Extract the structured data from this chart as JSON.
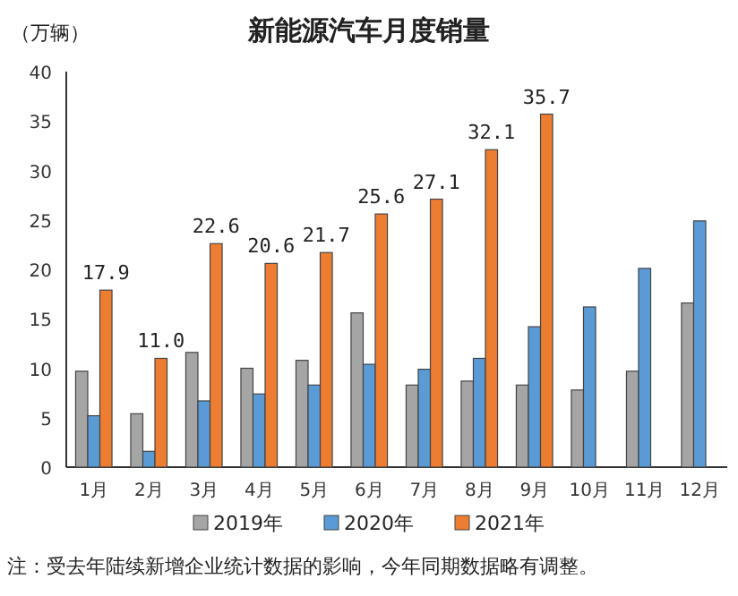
{
  "chart_data": {
    "type": "bar",
    "title": "新能源汽车月度销量",
    "ylabel": "（万辆）",
    "categories": [
      "1月",
      "2月",
      "3月",
      "4月",
      "5月",
      "6月",
      "7月",
      "8月",
      "9月",
      "10月",
      "11月",
      "12月"
    ],
    "series": [
      {
        "name": "2019年",
        "color": "#a5a5a5",
        "values": [
          9.7,
          5.4,
          11.6,
          10.0,
          10.8,
          15.6,
          8.3,
          8.7,
          8.3,
          7.8,
          9.7,
          16.6
        ]
      },
      {
        "name": "2020年",
        "color": "#5b9bd5",
        "values": [
          5.2,
          1.6,
          6.7,
          7.4,
          8.3,
          10.4,
          9.9,
          11.0,
          14.2,
          16.2,
          20.1,
          24.9
        ]
      },
      {
        "name": "2021年",
        "color": "#ed7d31",
        "values": [
          17.9,
          11.0,
          22.6,
          20.6,
          21.7,
          25.6,
          27.1,
          32.1,
          35.7,
          null,
          null,
          null
        ],
        "value_labels": [
          "17.9",
          "11.0",
          "22.6",
          "20.6",
          "21.7",
          "25.6",
          "27.1",
          "32.1",
          "35.7",
          null,
          null,
          null
        ]
      }
    ],
    "ylim": [
      0,
      40
    ],
    "yticks": [
      0,
      5,
      10,
      15,
      20,
      25,
      30,
      35,
      40
    ],
    "grid": false,
    "legend": "bottom",
    "annotations": [
      "注：受去年陆续新增企业统计数据的影响，今年同期数据略有调整。"
    ]
  }
}
